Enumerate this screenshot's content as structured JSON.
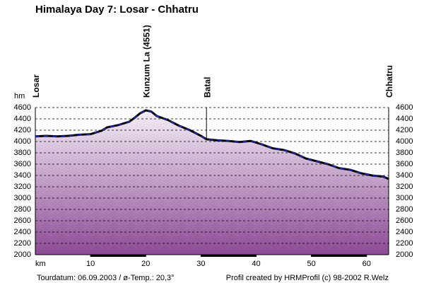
{
  "chart_data": {
    "type": "area",
    "title": "Himalaya Day 7: Losar - Chhatru",
    "y_label": "hm",
    "x_label": "km",
    "x": [
      0,
      2,
      4,
      6,
      8,
      10,
      12,
      13,
      15,
      17,
      18,
      19,
      20,
      21,
      22,
      24,
      26,
      28,
      30,
      31,
      33,
      35,
      37,
      39,
      40,
      41,
      43,
      45,
      47,
      49,
      51,
      53,
      55,
      57,
      59,
      61,
      63,
      64
    ],
    "values": [
      4090,
      4100,
      4090,
      4100,
      4120,
      4130,
      4190,
      4250,
      4290,
      4350,
      4420,
      4500,
      4550,
      4530,
      4450,
      4380,
      4280,
      4200,
      4100,
      4040,
      4020,
      4010,
      3990,
      4010,
      3980,
      3950,
      3880,
      3850,
      3790,
      3700,
      3650,
      3600,
      3530,
      3500,
      3440,
      3400,
      3380,
      3340
    ],
    "color": "#000000",
    "xlim": [
      0,
      64
    ],
    "ylim": [
      2000,
      4600
    ],
    "xticks": [
      10,
      20,
      30,
      40,
      50,
      60
    ],
    "yticks": [
      2000,
      2200,
      2400,
      2600,
      2800,
      3000,
      3200,
      3400,
      3600,
      3800,
      4000,
      4200,
      4400,
      4600
    ],
    "grid": true,
    "markers": [
      {
        "label": "Losar",
        "x": 0
      },
      {
        "label": "Kunzum La (4551)",
        "x": 20
      },
      {
        "label": "Batal",
        "x": 31
      },
      {
        "label": "Chhatru",
        "x": 64
      }
    ],
    "footer": [
      "Tourdatum: 06.09.2003  /  ø-Temp.: 20,3°",
      "Profil created by HRMProfil (c) 98-2002 R.Welz"
    ]
  }
}
